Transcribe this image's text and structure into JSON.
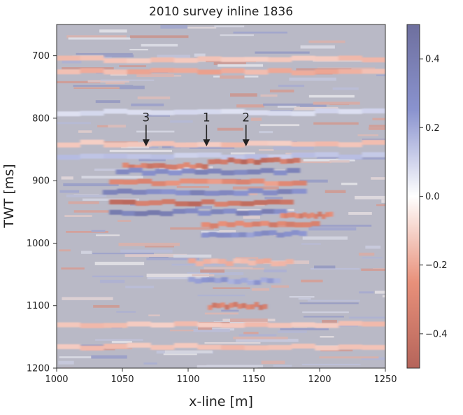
{
  "chart_data": {
    "type": "heatmap",
    "title": "2010 survey inline 1836",
    "xlabel": "x-line [m]",
    "ylabel": "TWT [ms]",
    "xlim": [
      1000,
      1250
    ],
    "ylim": [
      1200,
      650
    ],
    "x_ticks": [
      1000,
      1050,
      1100,
      1150,
      1200,
      1250
    ],
    "y_ticks": [
      700,
      800,
      900,
      1000,
      1100,
      1200
    ],
    "colorbar": {
      "vmin": -0.5,
      "vmax": 0.5,
      "ticks": [
        0.4,
        0.2,
        0.0,
        -0.2,
        -0.4
      ],
      "tick_labels": [
        "0.4",
        "0.2",
        "0.0",
        "−0.2",
        "−0.4"
      ],
      "colors": {
        "low": "#b5645a",
        "lowmid": "#e8907a",
        "mid": "#ffffff",
        "highmid": "#8a93cf",
        "high": "#6e6f9e"
      }
    },
    "annotations": [
      {
        "label": "3",
        "x": 1068,
        "y_text": 805,
        "y_tip": 845
      },
      {
        "label": "1",
        "x": 1114,
        "y_text": 805,
        "y_tip": 845
      },
      {
        "label": "2",
        "x": 1144,
        "y_text": 805,
        "y_tip": 845
      }
    ],
    "reflectors": [
      {
        "y": 705,
        "x0": 1000,
        "x1": 1250,
        "amp": -0.15
      },
      {
        "y": 725,
        "x0": 1000,
        "x1": 1250,
        "amp": -0.2
      },
      {
        "y": 790,
        "x0": 1000,
        "x1": 1250,
        "amp": 0.1
      },
      {
        "y": 840,
        "x0": 1000,
        "x1": 1250,
        "amp": -0.15
      },
      {
        "y": 860,
        "x0": 1000,
        "x1": 1250,
        "amp": 0.15
      },
      {
        "y": 868,
        "x0": 1115,
        "x1": 1185,
        "amp": -0.45
      },
      {
        "y": 876,
        "x0": 1050,
        "x1": 1115,
        "amp": -0.4
      },
      {
        "y": 885,
        "x0": 1045,
        "x1": 1185,
        "amp": 0.35
      },
      {
        "y": 902,
        "x0": 1040,
        "x1": 1190,
        "amp": -0.3
      },
      {
        "y": 918,
        "x0": 1035,
        "x1": 1190,
        "amp": 0.35
      },
      {
        "y": 935,
        "x0": 1040,
        "x1": 1180,
        "amp": -0.45
      },
      {
        "y": 950,
        "x0": 1040,
        "x1": 1175,
        "amp": 0.4
      },
      {
        "y": 955,
        "x0": 1170,
        "x1": 1210,
        "amp": -0.35
      },
      {
        "y": 970,
        "x0": 1110,
        "x1": 1200,
        "amp": -0.35
      },
      {
        "y": 985,
        "x0": 1110,
        "x1": 1190,
        "amp": 0.3
      },
      {
        "y": 1030,
        "x0": 1100,
        "x1": 1180,
        "amp": -0.2
      },
      {
        "y": 1060,
        "x0": 1100,
        "x1": 1170,
        "amp": 0.25
      },
      {
        "y": 1100,
        "x0": 1115,
        "x1": 1160,
        "amp": -0.4
      },
      {
        "y": 1130,
        "x0": 1000,
        "x1": 1250,
        "amp": -0.15
      },
      {
        "y": 1165,
        "x0": 1000,
        "x1": 1250,
        "amp": -0.15
      }
    ]
  }
}
